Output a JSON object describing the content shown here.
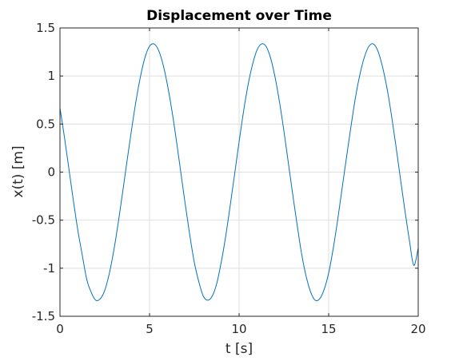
{
  "chart_data": {
    "type": "line",
    "title": "Displacement over Time",
    "xlabel": "t [s]",
    "ylabel": "x(t) [m]",
    "xlim": [
      0,
      20
    ],
    "ylim": [
      -1.5,
      1.5
    ],
    "xticks": [
      0,
      5,
      10,
      15,
      20
    ],
    "xtick_labels": [
      "0",
      "5",
      "10",
      "15",
      "20"
    ],
    "yticks": [
      -1.5,
      -1,
      -0.5,
      0,
      0.5,
      1,
      1.5
    ],
    "ytick_labels": [
      "-1.5",
      "-1",
      "-0.5",
      "0",
      "0.5",
      "1",
      "1.5"
    ],
    "grid": true,
    "series": [
      {
        "color": "#0072BD",
        "x": [
          0,
          0.25,
          0.5,
          0.75,
          1,
          1.25,
          1.5,
          1.75,
          2,
          2.25,
          2.5,
          2.75,
          3,
          3.25,
          3.5,
          3.75,
          4,
          4.25,
          4.5,
          4.75,
          5,
          5.25,
          5.5,
          5.75,
          6,
          6.25,
          6.5,
          6.75,
          7,
          7.25,
          7.5,
          7.75,
          8,
          8.25,
          8.5,
          8.75,
          9,
          9.25,
          9.5,
          9.75,
          10,
          10.25,
          10.5,
          10.75,
          11,
          11.25,
          11.5,
          11.75,
          12,
          12.25,
          12.5,
          12.75,
          13,
          13.25,
          13.5,
          13.75,
          14,
          14.25,
          14.5,
          14.75,
          15,
          15.25,
          15.5,
          15.75,
          16,
          16.25,
          16.5,
          16.75,
          17,
          17.25,
          17.5,
          17.75,
          18,
          18.25,
          18.5,
          18.75,
          19,
          19.25,
          19.5,
          19.75,
          20
        ],
        "y": [
          0.667,
          0.362,
          0.032,
          -0.3,
          -0.608,
          -0.87,
          -1.12,
          -1.254,
          -1.333,
          -1.318,
          -1.23,
          -1.059,
          -0.82,
          -0.53,
          -0.208,
          0.124,
          0.446,
          0.746,
          1.0,
          1.196,
          1.31,
          1.333,
          1.27,
          1.123,
          0.907,
          0.64,
          0.328,
          -0.008,
          -0.343,
          -0.66,
          -0.94,
          -1.14,
          -1.29,
          -1.333,
          -1.29,
          -1.16,
          -0.94,
          -0.67,
          -0.353,
          -0.02,
          0.315,
          0.633,
          0.907,
          1.12,
          1.27,
          1.333,
          1.31,
          1.192,
          0.995,
          0.736,
          0.43,
          0.095,
          -0.24,
          -0.563,
          -0.86,
          -1.09,
          -1.25,
          -1.333,
          -1.318,
          -1.22,
          -1.05,
          -0.8,
          -0.5,
          -0.17,
          0.16,
          0.48,
          0.78,
          1.02,
          1.2,
          1.31,
          1.333,
          1.26,
          1.1,
          0.88,
          0.6,
          0.28,
          -0.06,
          -0.39,
          -0.7,
          -0.97,
          -0.79
        ]
      }
    ]
  }
}
